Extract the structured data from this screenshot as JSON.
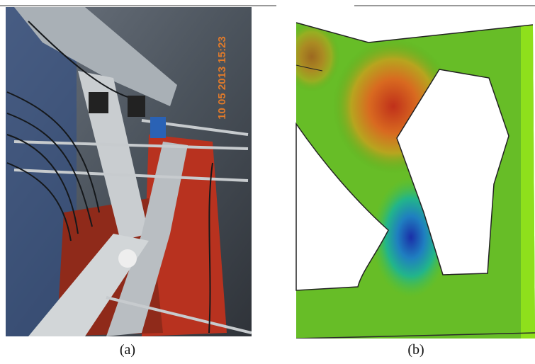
{
  "panels": [
    {
      "label": "(a)",
      "timestamp": "10 05 2013 15:23"
    },
    {
      "label": "(b)"
    }
  ]
}
